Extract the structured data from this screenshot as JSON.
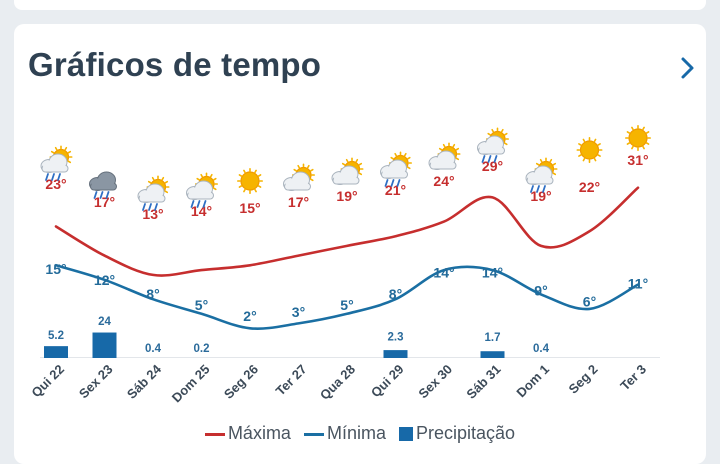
{
  "header": {
    "title": "Gráficos de tempo",
    "next_icon": "chevron-right-icon"
  },
  "colors": {
    "max": "#c62e2e",
    "min": "#1a6fa3",
    "precip": "#1769a8",
    "title": "#2f4152"
  },
  "legend": {
    "max_label": "Máxima",
    "min_label": "Mínima",
    "precip_label": "Precipitação"
  },
  "chart_data": {
    "type": "line",
    "categories": [
      "Qui 22",
      "Sex 23",
      "Sáb 24",
      "Dom 25",
      "Seg 26",
      "Ter 27",
      "Qua 28",
      "Qui 29",
      "Sex 30",
      "Sáb 31",
      "Dom 1",
      "Seg 2",
      "Ter 3"
    ],
    "series": [
      {
        "name": "Máxima",
        "values": [
          23,
          17,
          13,
          14,
          15,
          17,
          19,
          21,
          24,
          29,
          19,
          22,
          31
        ],
        "labels": [
          "23°",
          "17°",
          "13°",
          "14°",
          "15°",
          "17°",
          "19°",
          "21°",
          "24°",
          "29°",
          "19°",
          "22°",
          "31°"
        ]
      },
      {
        "name": "Mínima",
        "values": [
          15,
          12,
          8,
          5,
          2,
          3,
          5,
          8,
          14,
          14,
          9,
          6,
          11
        ],
        "labels": [
          "15°",
          "12°",
          "8°",
          "5°",
          "2°",
          "3°",
          "5°",
          "8°",
          "14°",
          "14°",
          "9°",
          "6°",
          "11°"
        ]
      },
      {
        "name": "Precipitação",
        "type": "bar",
        "values": [
          5.2,
          24,
          0.4,
          0.2,
          null,
          null,
          null,
          2.3,
          null,
          1.7,
          0.4,
          null,
          null
        ],
        "labels": [
          "5.2",
          "24",
          "0.4",
          "0.2",
          "",
          "",
          "",
          "2.3",
          "",
          "1.7",
          "0.4",
          "",
          ""
        ]
      }
    ],
    "weather_icons": [
      "sun-cloud-rain-icon",
      "cloud-rain-icon",
      "sun-cloud-rain-icon",
      "sun-cloud-rain-icon",
      "sun-icon",
      "sun-cloud-icon",
      "sun-cloud-icon",
      "sun-cloud-rain-icon",
      "sun-cloud-icon",
      "sun-cloud-rain-icon",
      "sun-cloud-rain-icon",
      "sun-icon",
      "sun-icon"
    ],
    "grid": false,
    "legend_position": "bottom-center"
  }
}
